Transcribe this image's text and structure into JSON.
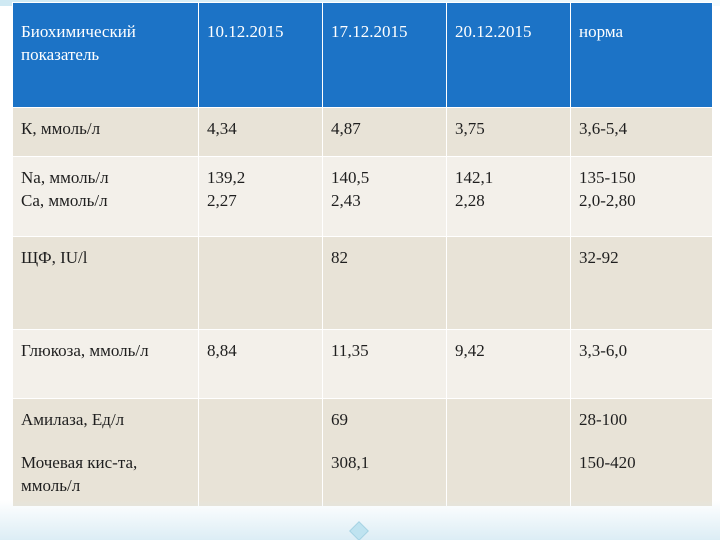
{
  "table": {
    "header": {
      "indicator": "Биохимический показатель",
      "d1": "10.12.2015",
      "d2": "17.12.2015",
      "d3": "20.12.2015",
      "norm": "норма"
    },
    "rows": [
      {
        "name": [
          "К, ммоль/л"
        ],
        "d1": [
          "4,34"
        ],
        "d2": [
          "4,87"
        ],
        "d3": [
          "3,75"
        ],
        "norm": [
          "3,6-5,4"
        ]
      },
      {
        "name": [
          "Na, ммоль/л",
          "Ca, ммоль/л"
        ],
        "d1": [
          "139,2",
          "2,27"
        ],
        "d2": [
          "140,5",
          "2,43"
        ],
        "d3": [
          "142,1",
          "2,28"
        ],
        "norm": [
          "135-150",
          "2,0-2,80"
        ]
      },
      {
        "name": [
          "ЩФ, IU/l"
        ],
        "d1": [
          ""
        ],
        "d2": [
          "82"
        ],
        "d3": [
          ""
        ],
        "norm": [
          "32-92"
        ]
      },
      {
        "name": [
          "Глюкоза, ммоль/л"
        ],
        "d1": [
          "8,84"
        ],
        "d2": [
          "11,35"
        ],
        "d3": [
          "9,42"
        ],
        "norm": [
          "3,3-6,0"
        ]
      },
      {
        "name": [
          "Амилаза, Ед/л",
          "Мочевая кис-та, ммоль/л"
        ],
        "d1": [
          "",
          ""
        ],
        "d2": [
          "69",
          "308,1"
        ],
        "d3": [
          "",
          ""
        ],
        "norm": [
          "28-100",
          "150-420"
        ]
      }
    ]
  },
  "colors": {
    "header_bg": "#1c73c6",
    "row_odd_bg": "#e8e3d7",
    "row_even_bg": "#f3f0ea",
    "slide_accent": "#bfe3f0"
  }
}
